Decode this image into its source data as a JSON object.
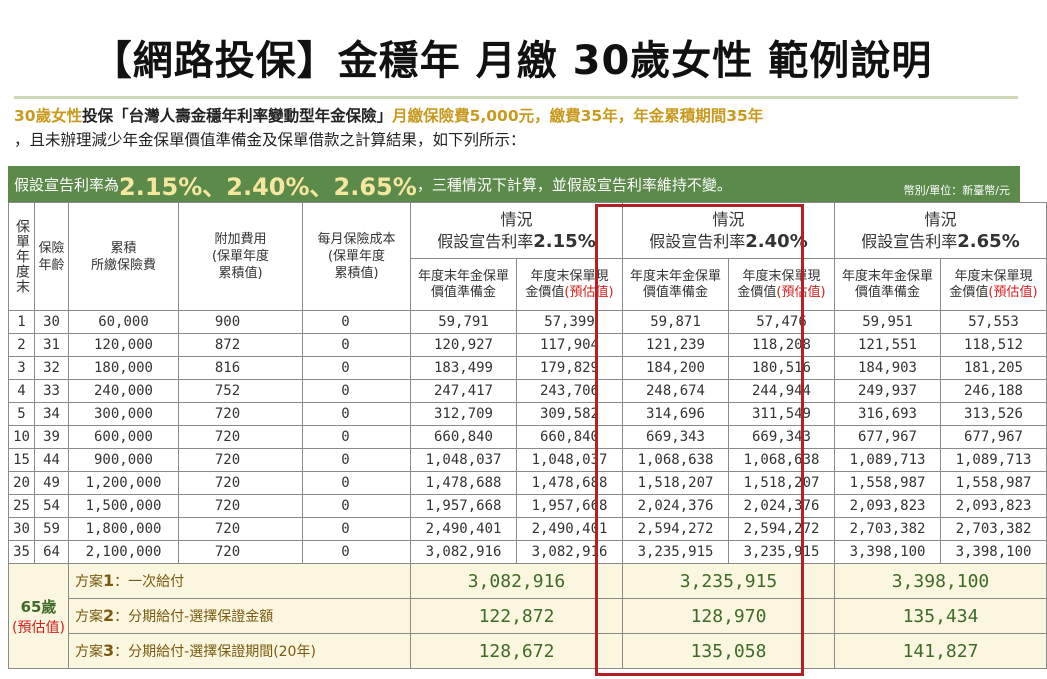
{
  "title": "【網路投保】金穩年 月繳 30歲女性 範例說明",
  "intro": {
    "p1": "30歲女性",
    "p2": "投保「台灣人壽金穩年利率變動型年金保險」",
    "p3": "月繳保險費5,000元，繳費35年，年金累積期間35年",
    "p4": "，且未辦理減少年金保單價值準備金及保單借款之計算結果，如下列所示："
  },
  "banner": {
    "prefix": "假設宣告利率為",
    "rates": "2.15%、2.40%、2.65%",
    "suffix": "，三種情況下計算，並假設宣告利率維持不變。",
    "unit": "幣別/單位：新臺幣/元"
  },
  "headers": {
    "year": "保單年度末",
    "age": "保險年齡",
    "premium": "累積\n所繳保險費",
    "fee": "附加費用\n(保單年度\n累積值)",
    "cost": "每月保險成本\n(保單年度\n累積值)",
    "scenario": "情況",
    "scenario_prefix": "假設宣告利率",
    "rate1": "2.15%",
    "rate2": "2.40%",
    "rate3": "2.65%",
    "reserve": "年度末年金保單價值準備金",
    "cash1": "年度末保單現",
    "cash2": "金價值",
    "estimate": "(預估值)"
  },
  "rows": [
    [
      "1",
      "30",
      "60,000",
      "900",
      "0",
      "59,791",
      "57,399",
      "59,871",
      "57,476",
      "59,951",
      "57,553"
    ],
    [
      "2",
      "31",
      "120,000",
      "872",
      "0",
      "120,927",
      "117,904",
      "121,239",
      "118,208",
      "121,551",
      "118,512"
    ],
    [
      "3",
      "32",
      "180,000",
      "816",
      "0",
      "183,499",
      "179,829",
      "184,200",
      "180,516",
      "184,903",
      "181,205"
    ],
    [
      "4",
      "33",
      "240,000",
      "752",
      "0",
      "247,417",
      "243,706",
      "248,674",
      "244,944",
      "249,937",
      "246,188"
    ],
    [
      "5",
      "34",
      "300,000",
      "720",
      "0",
      "312,709",
      "309,582",
      "314,696",
      "311,549",
      "316,693",
      "313,526"
    ],
    [
      "10",
      "39",
      "600,000",
      "720",
      "0",
      "660,840",
      "660,840",
      "669,343",
      "669,343",
      "677,967",
      "677,967"
    ],
    [
      "15",
      "44",
      "900,000",
      "720",
      "0",
      "1,048,037",
      "1,048,037",
      "1,068,638",
      "1,068,638",
      "1,089,713",
      "1,089,713"
    ],
    [
      "20",
      "49",
      "1,200,000",
      "720",
      "0",
      "1,478,688",
      "1,478,688",
      "1,518,207",
      "1,518,207",
      "1,558,987",
      "1,558,987"
    ],
    [
      "25",
      "54",
      "1,500,000",
      "720",
      "0",
      "1,957,668",
      "1,957,668",
      "2,024,376",
      "2,024,376",
      "2,093,823",
      "2,093,823"
    ],
    [
      "30",
      "59",
      "1,800,000",
      "720",
      "0",
      "2,490,401",
      "2,490,401",
      "2,594,272",
      "2,594,272",
      "2,703,382",
      "2,703,382"
    ],
    [
      "35",
      "64",
      "2,100,000",
      "720",
      "0",
      "3,082,916",
      "3,082,916",
      "3,235,915",
      "3,235,915",
      "3,398,100",
      "3,398,100"
    ]
  ],
  "age65": {
    "label": "65歲",
    "note": "(預估值)"
  },
  "options": [
    {
      "prefix": "方案",
      "num": "1",
      "text": "：一次給付",
      "values": [
        "3,082,916",
        "3,235,915",
        "3,398,100"
      ]
    },
    {
      "prefix": "方案",
      "num": "2",
      "text": "：分期給付-選擇保證金額",
      "values": [
        "122,872",
        "128,970",
        "135,434"
      ]
    },
    {
      "prefix": "方案",
      "num": "3",
      "text": "：分期給付-選擇保證期間(20年)",
      "values": [
        "128,672",
        "135,058",
        "141,827"
      ]
    }
  ],
  "colors": {
    "banner": "#5b8a4b",
    "highlight": "#b52024",
    "gold": "#c99a1f"
  }
}
